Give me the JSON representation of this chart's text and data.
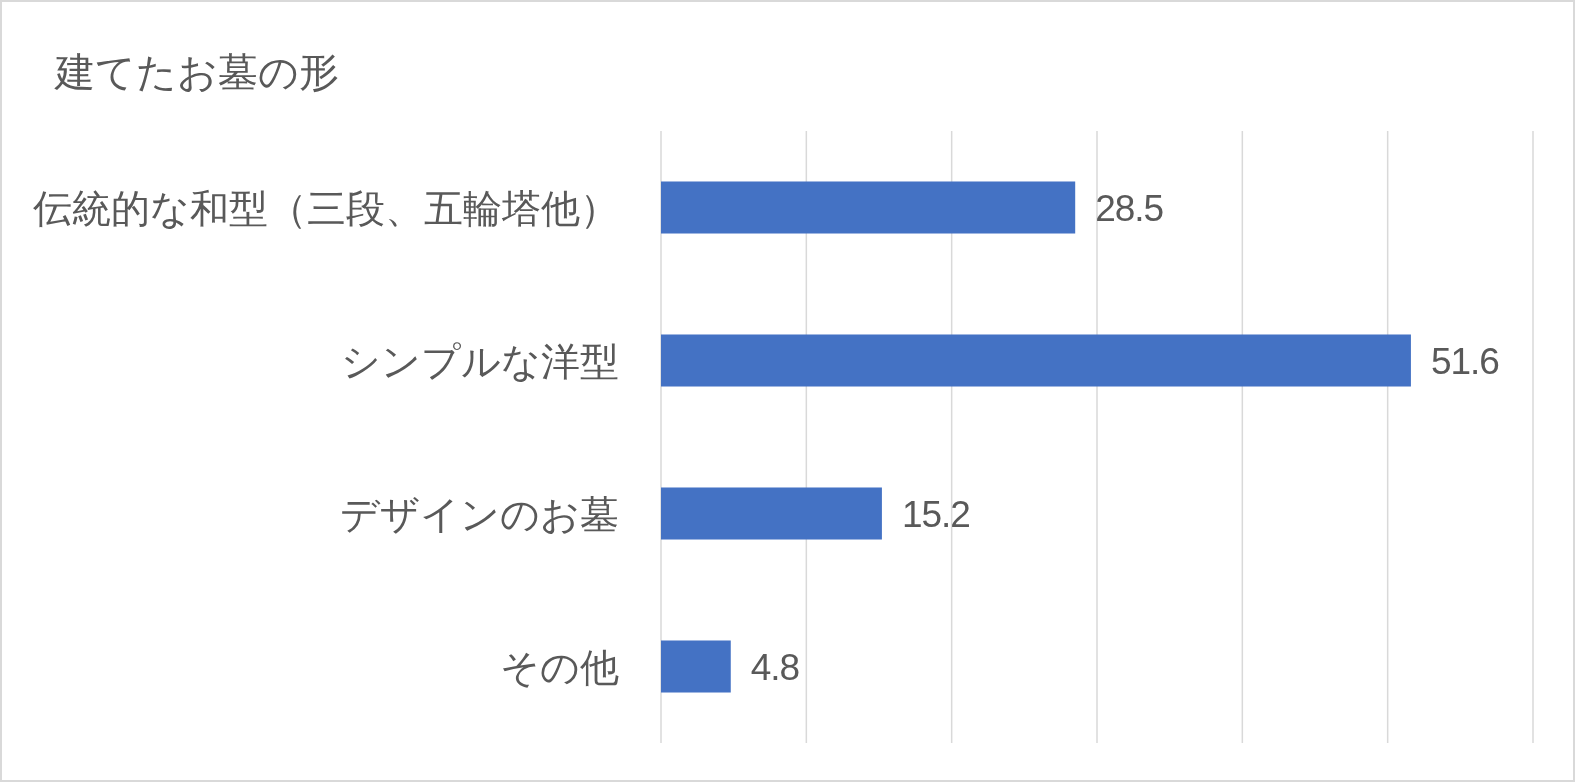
{
  "chart_data": {
    "type": "bar",
    "orientation": "horizontal",
    "title": "建てたお墓の形",
    "categories": [
      "伝統的な和型（三段、五輪塔他）",
      "シンプルな洋型",
      "デザインのお墓",
      "その他"
    ],
    "values": [
      28.5,
      51.6,
      15.2,
      4.8
    ],
    "color": "#4472c4",
    "xlim": [
      0,
      60
    ],
    "xticks": [
      {
        "value": 0,
        "label": null
      },
      {
        "value": 10,
        "label": null
      },
      {
        "value": 20,
        "label": null
      },
      {
        "value": 30,
        "label": null
      },
      {
        "value": 40,
        "label": null
      },
      {
        "value": 50,
        "label": null
      },
      {
        "value": 60,
        "label": null
      }
    ],
    "grid": "x",
    "data_labels": true,
    "tick_labels": "y"
  }
}
